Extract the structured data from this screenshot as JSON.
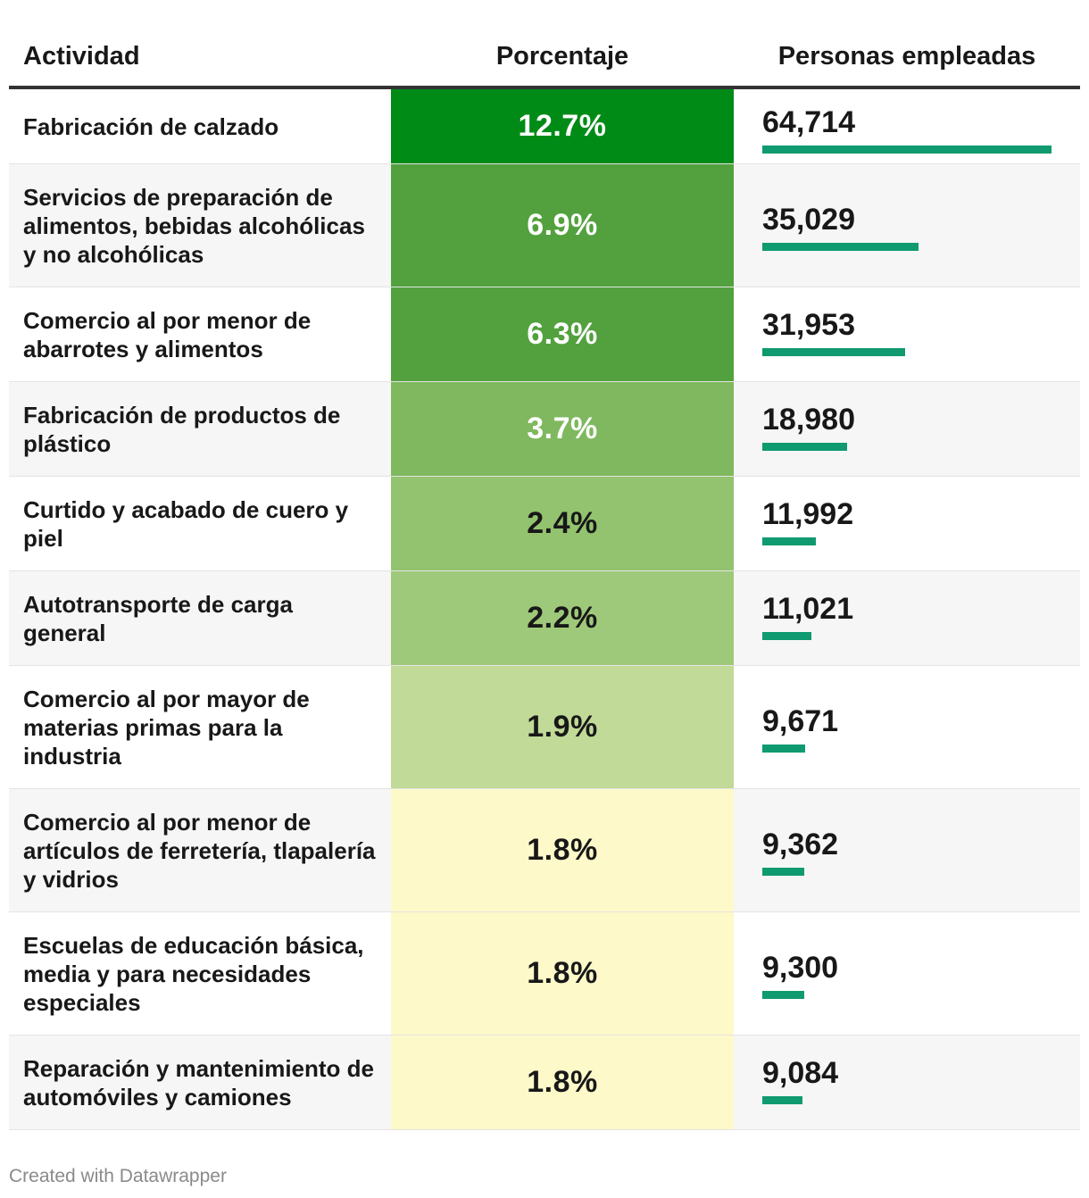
{
  "chart_data": {
    "type": "table",
    "columns": [
      "Actividad",
      "Porcentaje",
      "Personas empleadas"
    ],
    "rows": [
      {
        "actividad": "Fabricación de calzado",
        "porcentaje": 12.7,
        "porcentaje_label": "12.7%",
        "empleados": 64714,
        "empleados_label": "64,714",
        "color": "#008b17",
        "text_color": "#ffffff"
      },
      {
        "actividad": "Servicios de preparación de alimentos, bebidas alcohólicas y no alcohólicas",
        "porcentaje": 6.9,
        "porcentaje_label": "6.9%",
        "empleados": 35029,
        "empleados_label": "35,029",
        "color": "#53a13e",
        "text_color": "#ffffff"
      },
      {
        "actividad": "Comercio al por menor de abarrotes y alimentos",
        "porcentaje": 6.3,
        "porcentaje_label": "6.3%",
        "empleados": 31953,
        "empleados_label": "31,953",
        "color": "#53a13e",
        "text_color": "#ffffff"
      },
      {
        "actividad": "Fabricación de productos de plástico",
        "porcentaje": 3.7,
        "porcentaje_label": "3.7%",
        "empleados": 18980,
        "empleados_label": "18,980",
        "color": "#7fb85e",
        "text_color": "#ffffff"
      },
      {
        "actividad": "Curtido y acabado de cuero y piel",
        "porcentaje": 2.4,
        "porcentaje_label": "2.4%",
        "empleados": 11992,
        "empleados_label": "11,992",
        "color": "#93c36e",
        "text_color": "#181818"
      },
      {
        "actividad": "Autotransporte de carga general",
        "porcentaje": 2.2,
        "porcentaje_label": "2.2%",
        "empleados": 11021,
        "empleados_label": "11,021",
        "color": "#9fc97a",
        "text_color": "#181818"
      },
      {
        "actividad": "Comercio al por mayor de materias primas para la industria",
        "porcentaje": 1.9,
        "porcentaje_label": "1.9%",
        "empleados": 9671,
        "empleados_label": "9,671",
        "color": "#c1da97",
        "text_color": "#181818"
      },
      {
        "actividad": "Comercio al por menor de artículos de ferretería, tlapalería y vidrios",
        "porcentaje": 1.8,
        "porcentaje_label": "1.8%",
        "empleados": 9362,
        "empleados_label": "9,362",
        "color": "#fdf9c9",
        "text_color": "#181818"
      },
      {
        "actividad": "Escuelas de educación básica, media y para necesidades especiales",
        "porcentaje": 1.8,
        "porcentaje_label": "1.8%",
        "empleados": 9300,
        "empleados_label": "9,300",
        "color": "#fdf9c9",
        "text_color": "#181818"
      },
      {
        "actividad": "Reparación y mantenimiento de automóviles y camiones",
        "porcentaje": 1.8,
        "porcentaje_label": "1.8%",
        "empleados": 9084,
        "empleados_label": "9,084",
        "color": "#fdf9c9",
        "text_color": "#181818"
      }
    ],
    "empleados_max": 64714,
    "bar_color": "#0f9a6f"
  },
  "footer": "Created with Datawrapper"
}
